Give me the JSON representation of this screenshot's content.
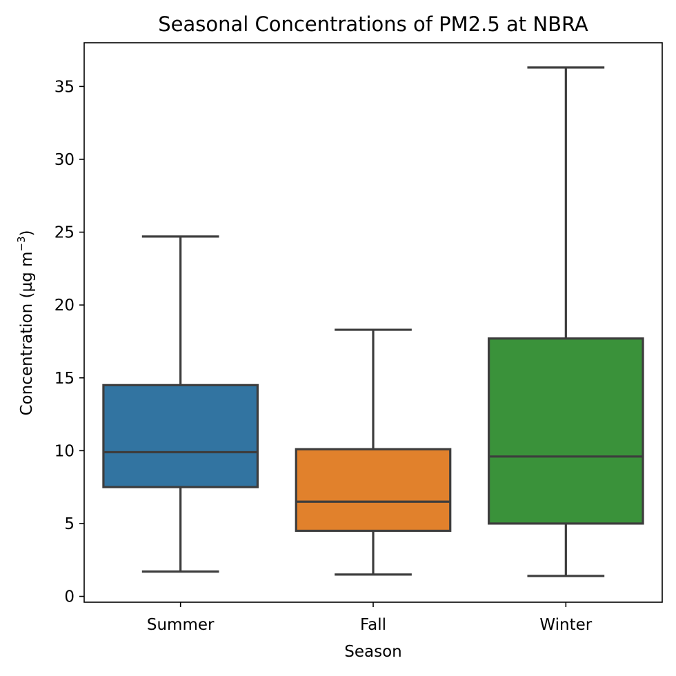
{
  "chart_data": {
    "type": "box",
    "title": "Seasonal Concentrations of PM2.5 at NBRA",
    "xlabel": "Season",
    "ylabel_main": "Concentration (µg m",
    "ylabel_sup": "−3",
    "ylabel_end": ")",
    "ylim": [
      -0.4,
      38
    ],
    "yticks": [
      0,
      5,
      10,
      15,
      20,
      25,
      30,
      35
    ],
    "categories": [
      "Summer",
      "Fall",
      "Winter"
    ],
    "boxes": [
      {
        "category": "Summer",
        "whisker_low": 1.7,
        "q1": 7.5,
        "median": 9.9,
        "q3": 14.5,
        "whisker_high": 24.7,
        "color": "#3274a1"
      },
      {
        "category": "Fall",
        "whisker_low": 1.5,
        "q1": 4.5,
        "median": 6.5,
        "q3": 10.1,
        "whisker_high": 18.3,
        "color": "#e1812c"
      },
      {
        "category": "Winter",
        "whisker_low": 1.4,
        "q1": 5.0,
        "median": 9.6,
        "q3": 17.7,
        "whisker_high": 36.3,
        "color": "#3a923a"
      }
    ],
    "line_color": "#3d3d3d",
    "grid": false,
    "legend": "none"
  }
}
